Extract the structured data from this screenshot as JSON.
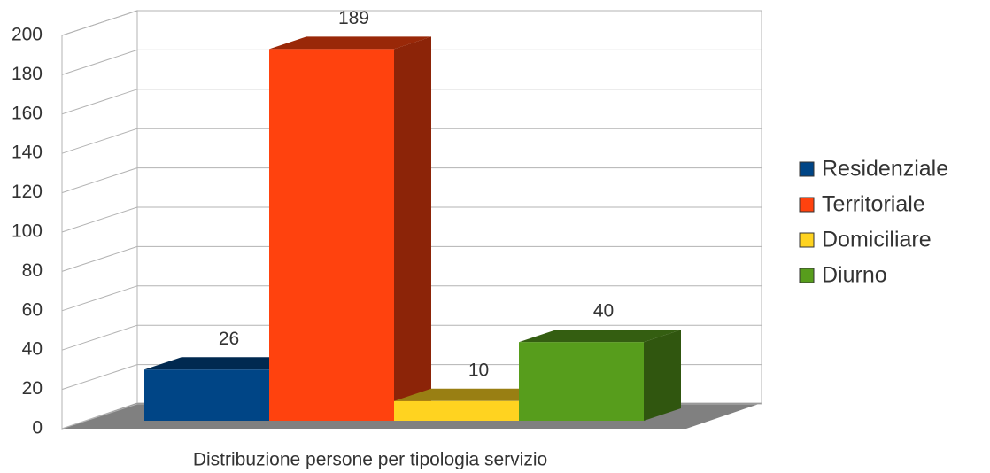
{
  "chart_data": {
    "type": "bar3d",
    "categories": [
      "Distribuzione persone per tipologia servizio"
    ],
    "series": [
      {
        "name": "Residenziale",
        "color": "#004586",
        "values": [
          26
        ]
      },
      {
        "name": "Territoriale",
        "color": "#ff420e",
        "values": [
          189
        ]
      },
      {
        "name": "Domiciliare",
        "color": "#ffd320",
        "values": [
          10
        ]
      },
      {
        "name": "Diurno",
        "color": "#579d1c",
        "values": [
          40
        ]
      }
    ],
    "ylim": [
      0,
      200
    ],
    "yticks": [
      0,
      20,
      40,
      60,
      80,
      100,
      120,
      140,
      160,
      180,
      200
    ],
    "grid": true,
    "legend": "right"
  }
}
